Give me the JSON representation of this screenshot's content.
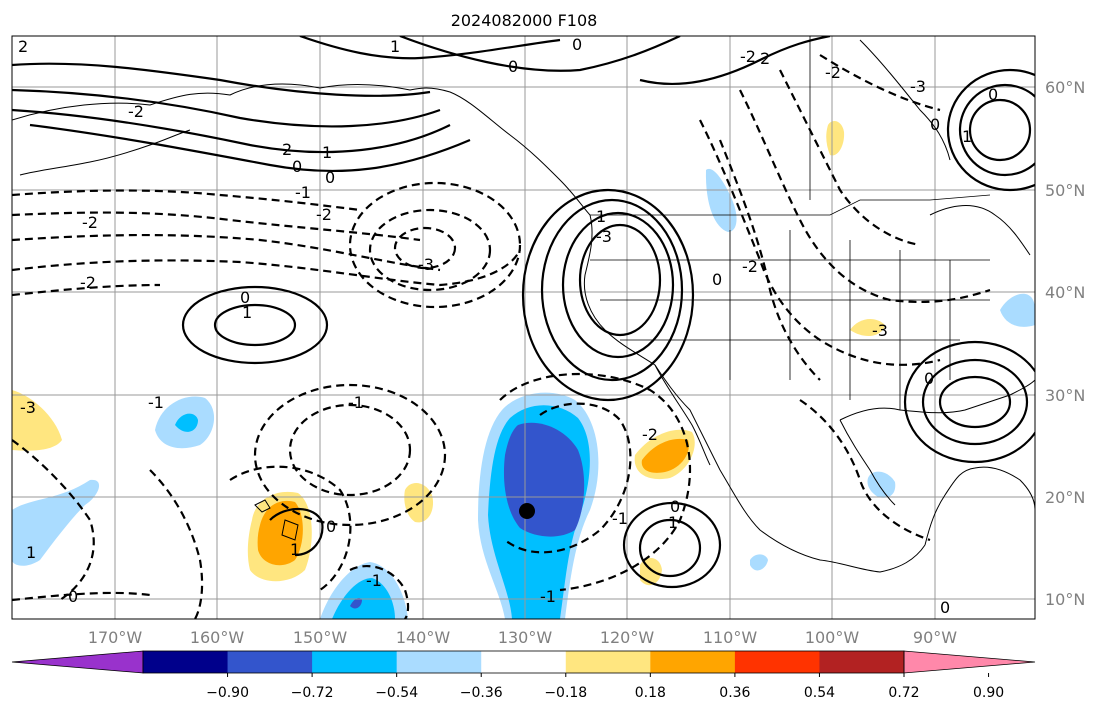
{
  "title": "2024082000 F108",
  "latitude_labels": [
    "60°N",
    "50°N",
    "40°N",
    "30°N",
    "20°N",
    "10°N"
  ],
  "longitude_labels": [
    "170°W",
    "160°W",
    "150°W",
    "140°W",
    "130°W",
    "120°W",
    "110°W",
    "100°W",
    "90°W"
  ],
  "colorbar": {
    "ticks": [
      "−0.90",
      "−0.72",
      "−0.54",
      "−0.36",
      "−0.18",
      "0.18",
      "0.36",
      "0.54",
      "0.72",
      "0.90"
    ],
    "colors": [
      "#9932cc",
      "#00008b",
      "#3355cc",
      "#00bfff",
      "#aadcff",
      "#ffffff",
      "#ffe680",
      "#ffa500",
      "#ff3300",
      "#b22222",
      "#ff88aa"
    ]
  },
  "contour_labels": {
    "l1": "2",
    "l2": "1",
    "l3": "0",
    "l4": "-2",
    "l5": "2",
    "l6": "0",
    "l7": "1",
    "l8": "-2",
    "l9": "-1",
    "l10": "0",
    "l11": "-2",
    "l12": "-2",
    "l13": "-3",
    "l14": "0",
    "l15": "1",
    "l16": "-1",
    "l17": "0",
    "l18": "-1",
    "l19": "1",
    "l20": "-3",
    "l21": "-2",
    "l22": "2",
    "l23": "-3",
    "l24": "-2",
    "l25": "-3",
    "l26": "0",
    "l27": "1",
    "l28": "0",
    "l29": "1",
    "l30": "-1",
    "l31": "0",
    "l32": "-1",
    "l33": "1",
    "l34": "0",
    "l35": "0",
    "l36": "-1",
    "l37": "-2",
    "l38": "0",
    "l39": "1",
    "l40": "0",
    "l41": "0",
    "l42": "-2",
    "l43": "-3"
  }
}
